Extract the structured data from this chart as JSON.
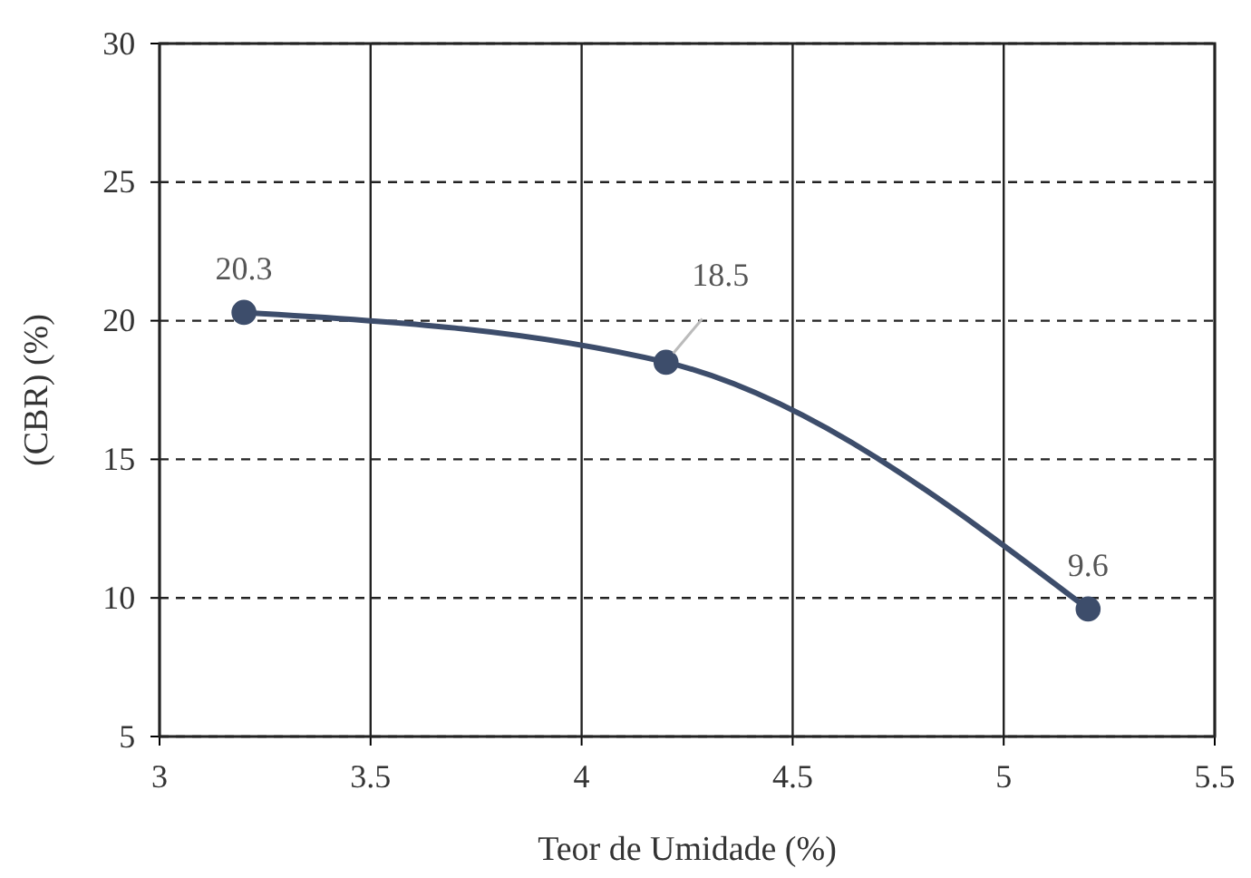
{
  "chart_data": {
    "type": "line",
    "xlabel": "Teor de Umidade (%)",
    "ylabel": "(CBR) (%)",
    "x": [
      3.2,
      4.2,
      5.2
    ],
    "series": [
      {
        "color": "#3d4d6b",
        "values": [
          20.3,
          18.5,
          9.6
        ]
      }
    ],
    "xlim": [
      3,
      5.5
    ],
    "xticks": [
      3,
      3.5,
      4,
      4.5,
      5,
      5.5
    ],
    "ylim": [
      5,
      30
    ],
    "yticks": [
      5,
      10,
      15,
      20,
      25,
      30
    ],
    "grid": true,
    "marker": "circle",
    "line_style": "solid",
    "data_labels": true
  }
}
